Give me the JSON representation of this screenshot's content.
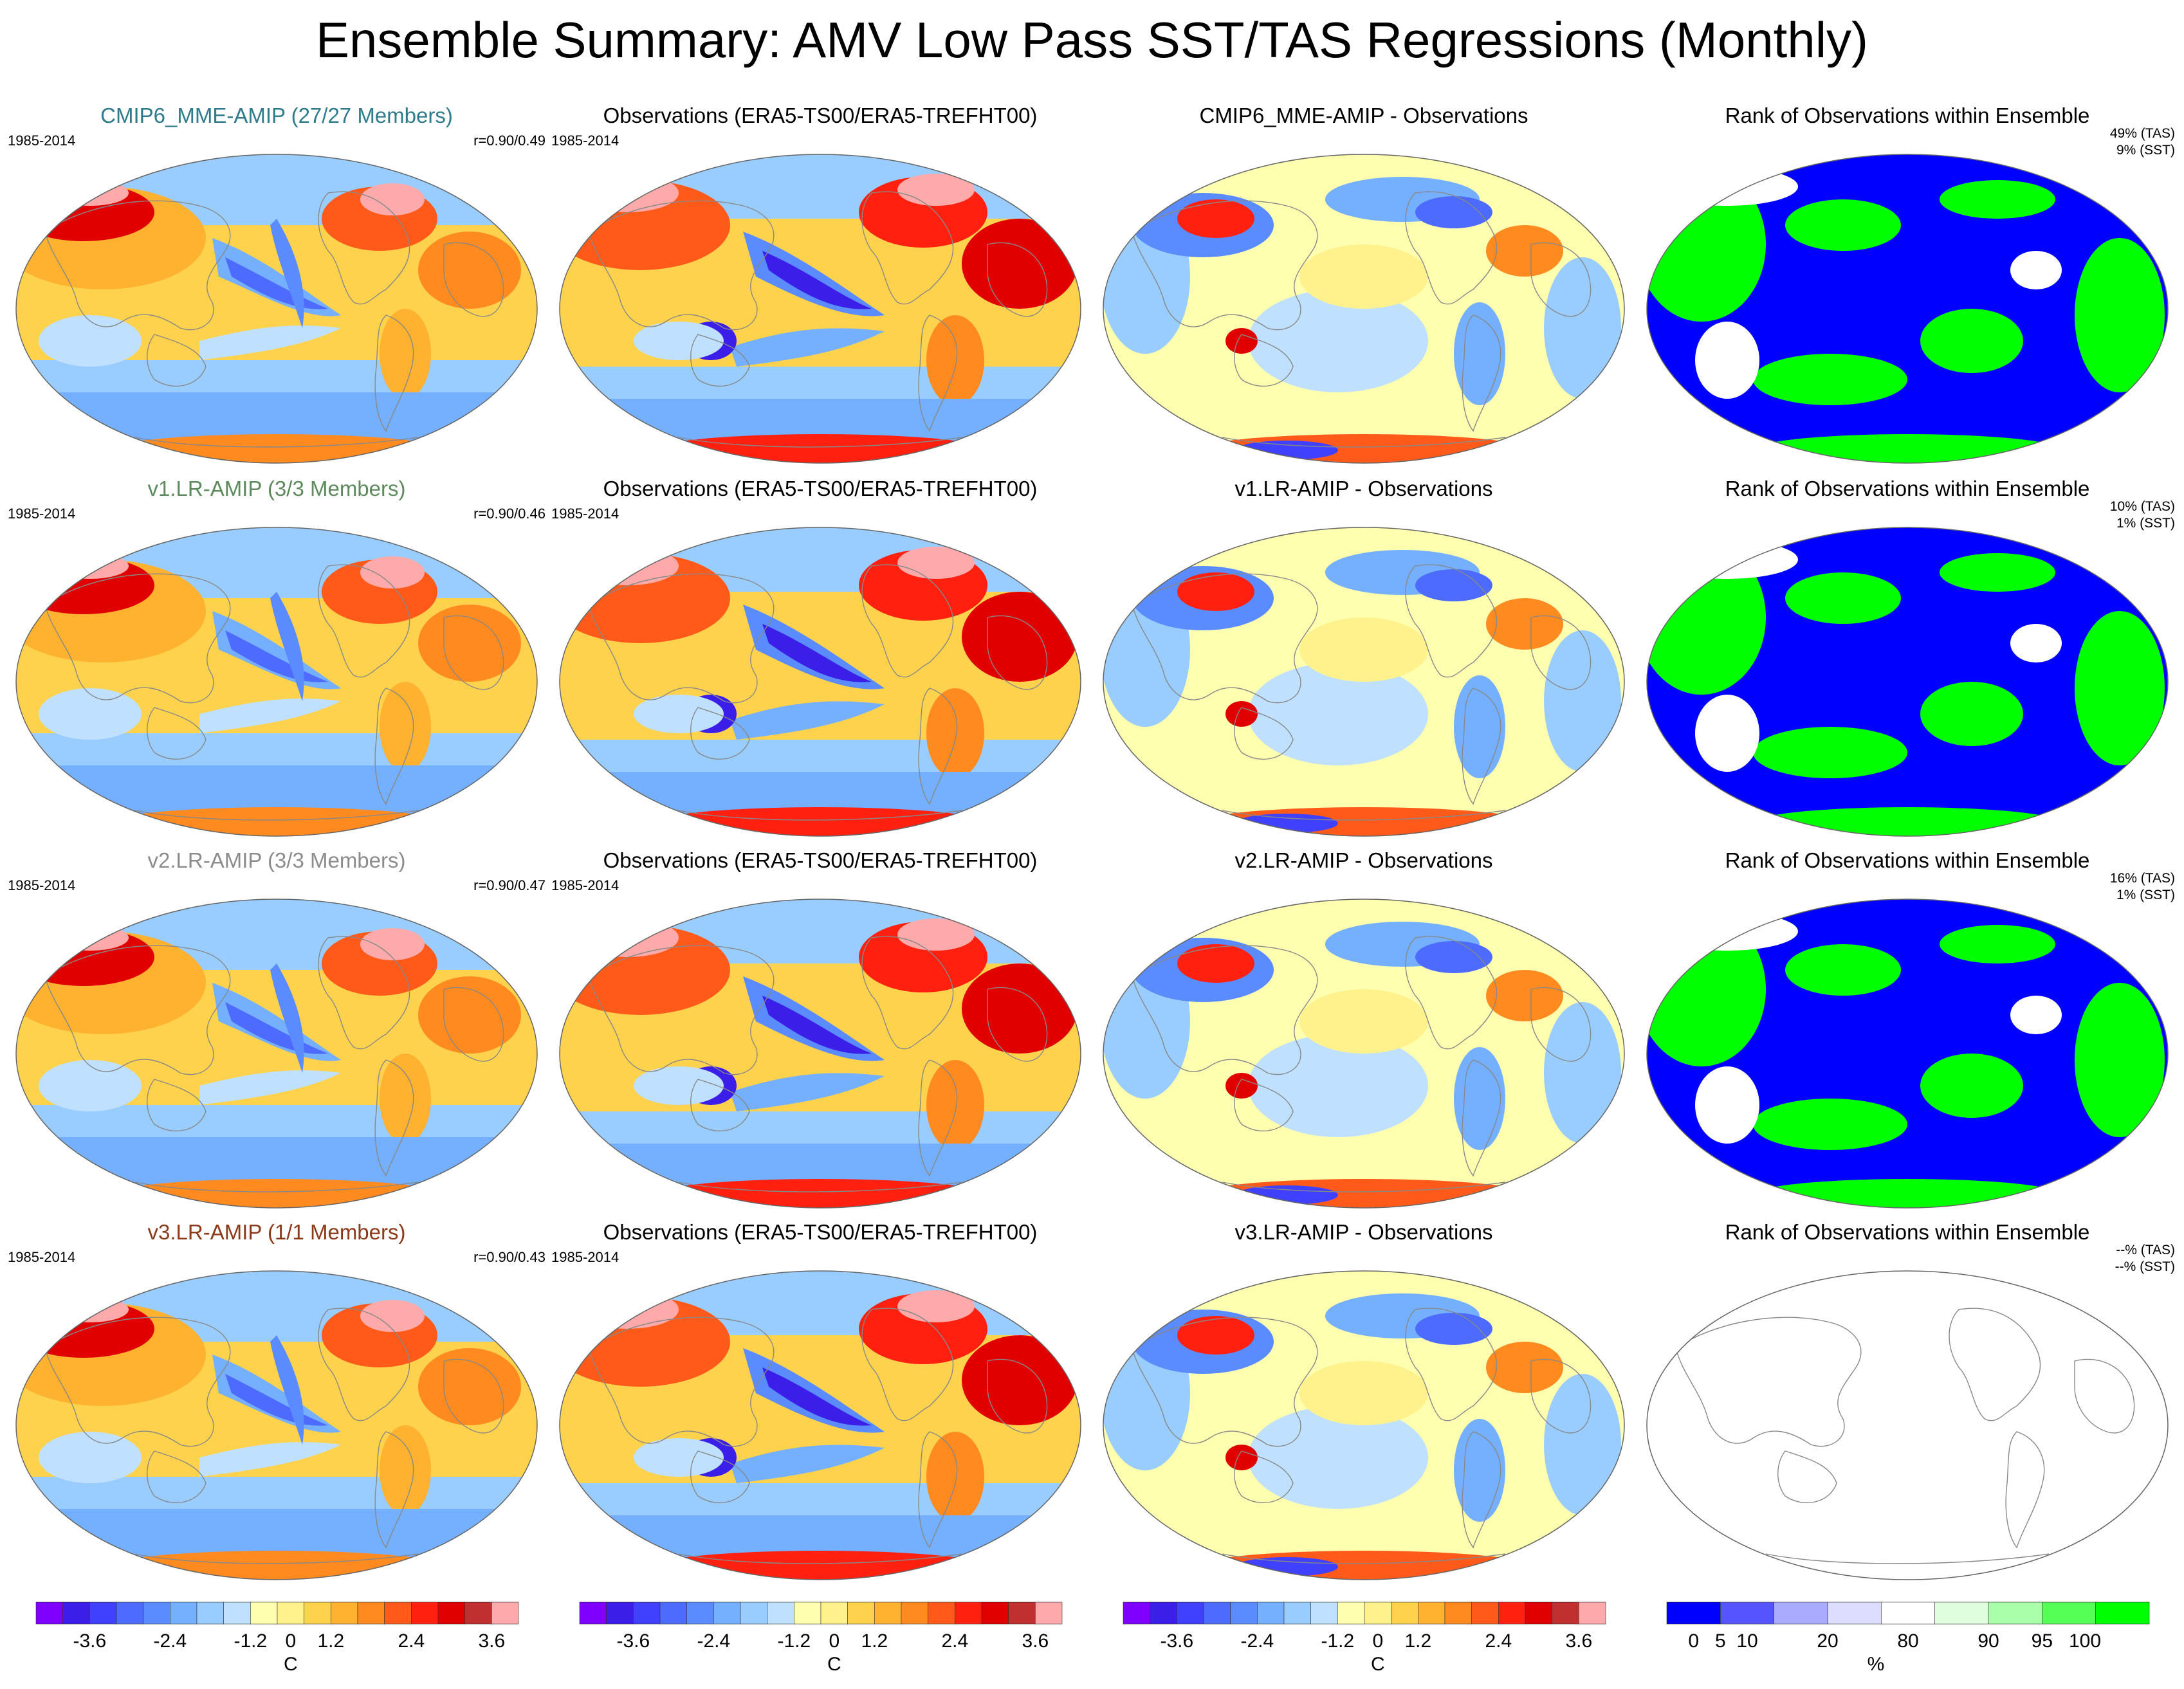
{
  "title": "Ensemble Summary: AMV Low Pass SST/TAS Regressions (Monthly)",
  "colors": {
    "cmip6_title": "#2e7b8c",
    "v1_title": "#5c8a5c",
    "v2_title": "#8c8c8c",
    "v3_title": "#8b3a1a",
    "temperature_scale": [
      "#7f00ff",
      "#3b1fe8",
      "#4040ff",
      "#4d6bff",
      "#5a8bff",
      "#74b0ff",
      "#99ccff",
      "#bfe1ff",
      "#ffffb0",
      "#fff28c",
      "#ffd24d",
      "#ffb230",
      "#ff8a1f",
      "#ff5a1a",
      "#ff2010",
      "#e00000",
      "#c03030",
      "#ffaaaa"
    ],
    "rank_scale": [
      "#0000ff",
      "#5555ff",
      "#aaaaff",
      "#ddddff",
      "#ffffff",
      "#ddffdd",
      "#aaffaa",
      "#55ff55",
      "#00ff00"
    ]
  },
  "rows": [
    {
      "model_title": "CMIP6_MME-AMIP (27/27 Members)",
      "years": "1985-2014",
      "correlation": "r=0.90/0.49",
      "obs_title": "Observations (ERA5-TS00/ERA5-TREFHT00)",
      "obs_years": "1985-2014",
      "diff_title": "CMIP6_MME-AMIP - Observations",
      "rank_title": "Rank of Observations within Ensemble",
      "rank_tas": "49% (TAS)",
      "rank_sst": "9% (SST)",
      "rank_empty": false
    },
    {
      "model_title": "v1.LR-AMIP (3/3 Members)",
      "years": "1985-2014",
      "correlation": "r=0.90/0.46",
      "obs_title": "Observations (ERA5-TS00/ERA5-TREFHT00)",
      "obs_years": "1985-2014",
      "diff_title": "v1.LR-AMIP - Observations",
      "rank_title": "Rank of Observations within Ensemble",
      "rank_tas": "10% (TAS)",
      "rank_sst": "1% (SST)",
      "rank_empty": false
    },
    {
      "model_title": "v2.LR-AMIP (3/3 Members)",
      "years": "1985-2014",
      "correlation": "r=0.90/0.47",
      "obs_title": "Observations (ERA5-TS00/ERA5-TREFHT00)",
      "obs_years": "1985-2014",
      "diff_title": "v2.LR-AMIP - Observations",
      "rank_title": "Rank of Observations within Ensemble",
      "rank_tas": "16% (TAS)",
      "rank_sst": "1% (SST)",
      "rank_empty": false
    },
    {
      "model_title": "v3.LR-AMIP (1/1 Members)",
      "years": "1985-2014",
      "correlation": "r=0.90/0.43",
      "obs_title": "Observations (ERA5-TS00/ERA5-TREFHT00)",
      "obs_years": "1985-2014",
      "diff_title": "v3.LR-AMIP - Observations",
      "rank_title": "Rank of Observations within Ensemble",
      "rank_tas": "--% (TAS)",
      "rank_sst": "--% (SST)",
      "rank_empty": true
    }
  ],
  "colorbars": {
    "temperature": {
      "ticks": [
        "-3.6",
        "-2.4",
        "-1.2",
        "0",
        "1.2",
        "2.4",
        "3.6"
      ],
      "unit": "C"
    },
    "rank": {
      "ticks": [
        "0",
        "5",
        "10",
        "20",
        "80",
        "90",
        "95",
        "100"
      ],
      "unit": "%"
    }
  }
}
